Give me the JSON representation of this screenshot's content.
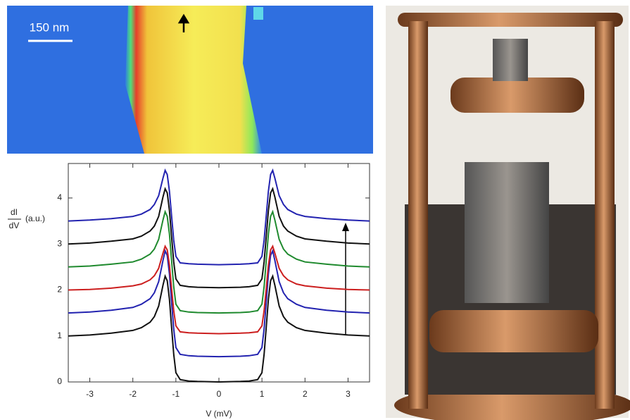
{
  "chart_data": {
    "type": "line",
    "scale_label": "150 nm",
    "xlabel": "V (mV)",
    "ylabel_numerator": "dI",
    "ylabel_denominator": "dV",
    "ylabel_unit": "(a.u.)",
    "xlim": [
      -3.5,
      3.5
    ],
    "xticks": [
      -3,
      -2,
      -1,
      0,
      1,
      2,
      3
    ],
    "ylim": [
      0,
      4.75
    ],
    "yticks": [
      0,
      1,
      2,
      3,
      4
    ],
    "x": [
      -3.5,
      -3,
      -2.5,
      -2,
      -1.8,
      -1.6,
      -1.5,
      -1.4,
      -1.3,
      -1.25,
      -1.2,
      -1.15,
      -1.1,
      -1.05,
      -1,
      -0.9,
      -0.7,
      -0.5,
      0,
      0.5,
      0.7,
      0.9,
      1,
      1.05,
      1.1,
      1.15,
      1.2,
      1.25,
      1.3,
      1.4,
      1.5,
      1.6,
      1.8,
      2,
      2.5,
      3,
      3.5
    ],
    "series": [
      {
        "color": "#111111",
        "values": [
          1,
          1.02,
          1.06,
          1.12,
          1.18,
          1.3,
          1.42,
          1.65,
          2.1,
          2.3,
          2.2,
          1.8,
          1.2,
          0.6,
          0.2,
          0.05,
          0.02,
          0.01,
          0,
          0.01,
          0.02,
          0.05,
          0.2,
          0.6,
          1.2,
          1.8,
          2.2,
          2.3,
          2.1,
          1.65,
          1.42,
          1.3,
          1.18,
          1.12,
          1.06,
          1.02,
          1
        ]
      },
      {
        "color": "#2323b0",
        "values": [
          1.5,
          1.52,
          1.56,
          1.62,
          1.69,
          1.81,
          1.94,
          2.18,
          2.64,
          2.85,
          2.75,
          2.35,
          1.75,
          1.15,
          0.75,
          0.6,
          0.57,
          0.56,
          0.55,
          0.56,
          0.57,
          0.6,
          0.75,
          1.15,
          1.75,
          2.35,
          2.75,
          2.85,
          2.64,
          2.18,
          1.94,
          1.81,
          1.69,
          1.62,
          1.56,
          1.52,
          1.5
        ]
      },
      {
        "color": "#cc1f1f",
        "values": [
          2,
          2.01,
          2.04,
          2.09,
          2.13,
          2.22,
          2.31,
          2.47,
          2.8,
          2.95,
          2.87,
          2.54,
          2.04,
          1.55,
          1.22,
          1.09,
          1.07,
          1.06,
          1.05,
          1.06,
          1.07,
          1.09,
          1.22,
          1.55,
          2.04,
          2.54,
          2.87,
          2.95,
          2.8,
          2.47,
          2.31,
          2.22,
          2.13,
          2.09,
          2.04,
          2.01,
          2
        ]
      },
      {
        "color": "#1f8a2e",
        "values": [
          2.5,
          2.52,
          2.56,
          2.61,
          2.67,
          2.78,
          2.89,
          3.1,
          3.52,
          3.7,
          3.6,
          3.22,
          2.65,
          2.07,
          1.69,
          1.55,
          1.52,
          1.51,
          1.5,
          1.51,
          1.52,
          1.55,
          1.69,
          2.07,
          2.65,
          3.22,
          3.6,
          3.7,
          3.52,
          3.1,
          2.89,
          2.78,
          2.67,
          2.61,
          2.56,
          2.52,
          2.5
        ]
      },
      {
        "color": "#111111",
        "values": [
          3,
          3.02,
          3.06,
          3.11,
          3.17,
          3.28,
          3.39,
          3.6,
          4.02,
          4.2,
          4.11,
          3.73,
          3.17,
          2.61,
          2.24,
          2.1,
          2.07,
          2.06,
          2.05,
          2.06,
          2.07,
          2.1,
          2.24,
          2.61,
          3.17,
          3.73,
          4.11,
          4.2,
          4.02,
          3.6,
          3.39,
          3.28,
          3.17,
          3.11,
          3.06,
          3.02,
          3
        ]
      },
      {
        "color": "#2323b0",
        "values": [
          3.5,
          3.52,
          3.55,
          3.6,
          3.65,
          3.75,
          3.86,
          4.05,
          4.43,
          4.6,
          4.51,
          4.15,
          3.62,
          3.08,
          2.73,
          2.59,
          2.57,
          2.56,
          2.55,
          2.56,
          2.57,
          2.59,
          2.73,
          3.08,
          3.62,
          4.15,
          4.51,
          4.6,
          4.43,
          4.05,
          3.86,
          3.75,
          3.65,
          3.6,
          3.55,
          3.52,
          3.5
        ]
      }
    ]
  }
}
